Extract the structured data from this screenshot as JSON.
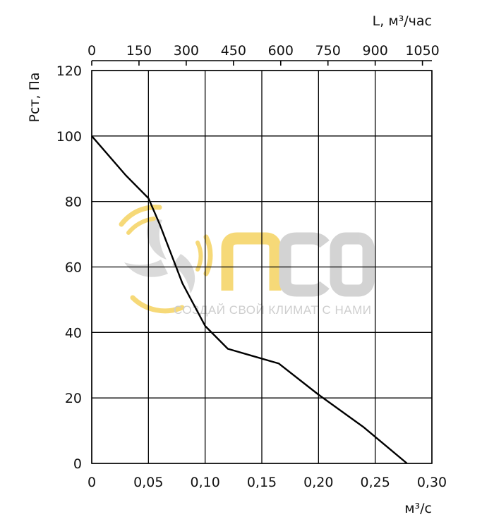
{
  "chart_data": {
    "type": "line",
    "xlabel": "м³/с",
    "ylabel": "Рст, Па",
    "x2label": "L, м³/час",
    "xlim": [
      0,
      0.3
    ],
    "ylim": [
      0,
      120
    ],
    "x2lim": [
      0,
      1080
    ],
    "xticks": [
      "0",
      "0,05",
      "0,10",
      "0,15",
      "0,20",
      "0,25",
      "0,30"
    ],
    "xtick_values": [
      0,
      0.05,
      0.1,
      0.15,
      0.2,
      0.25,
      0.3
    ],
    "yticks": [
      "0",
      "20",
      "40",
      "60",
      "80",
      "100",
      "120"
    ],
    "ytick_values": [
      0,
      20,
      40,
      60,
      80,
      100,
      120
    ],
    "x2ticks": [
      "0",
      "150",
      "300",
      "450",
      "600",
      "750",
      "900",
      "1050"
    ],
    "x2tick_values": [
      0,
      150,
      300,
      450,
      600,
      750,
      900,
      1050
    ],
    "grid": true,
    "series": [
      {
        "x": [
          0,
          0.03,
          0.05,
          0.06,
          0.08,
          0.1,
          0.12,
          0.14,
          0.165,
          0.2,
          0.24,
          0.278
        ],
        "y": [
          100,
          88,
          81,
          73,
          55,
          42,
          35,
          33,
          30.5,
          21,
          11,
          0
        ]
      }
    ]
  },
  "watermark": {
    "brand": "ПСО",
    "slogan": "СОЗДАЙ СВОЙ КЛИМАТ С НАМИ",
    "colors": {
      "yellow": "#f6d56a",
      "gray": "#cfcfcf"
    }
  }
}
